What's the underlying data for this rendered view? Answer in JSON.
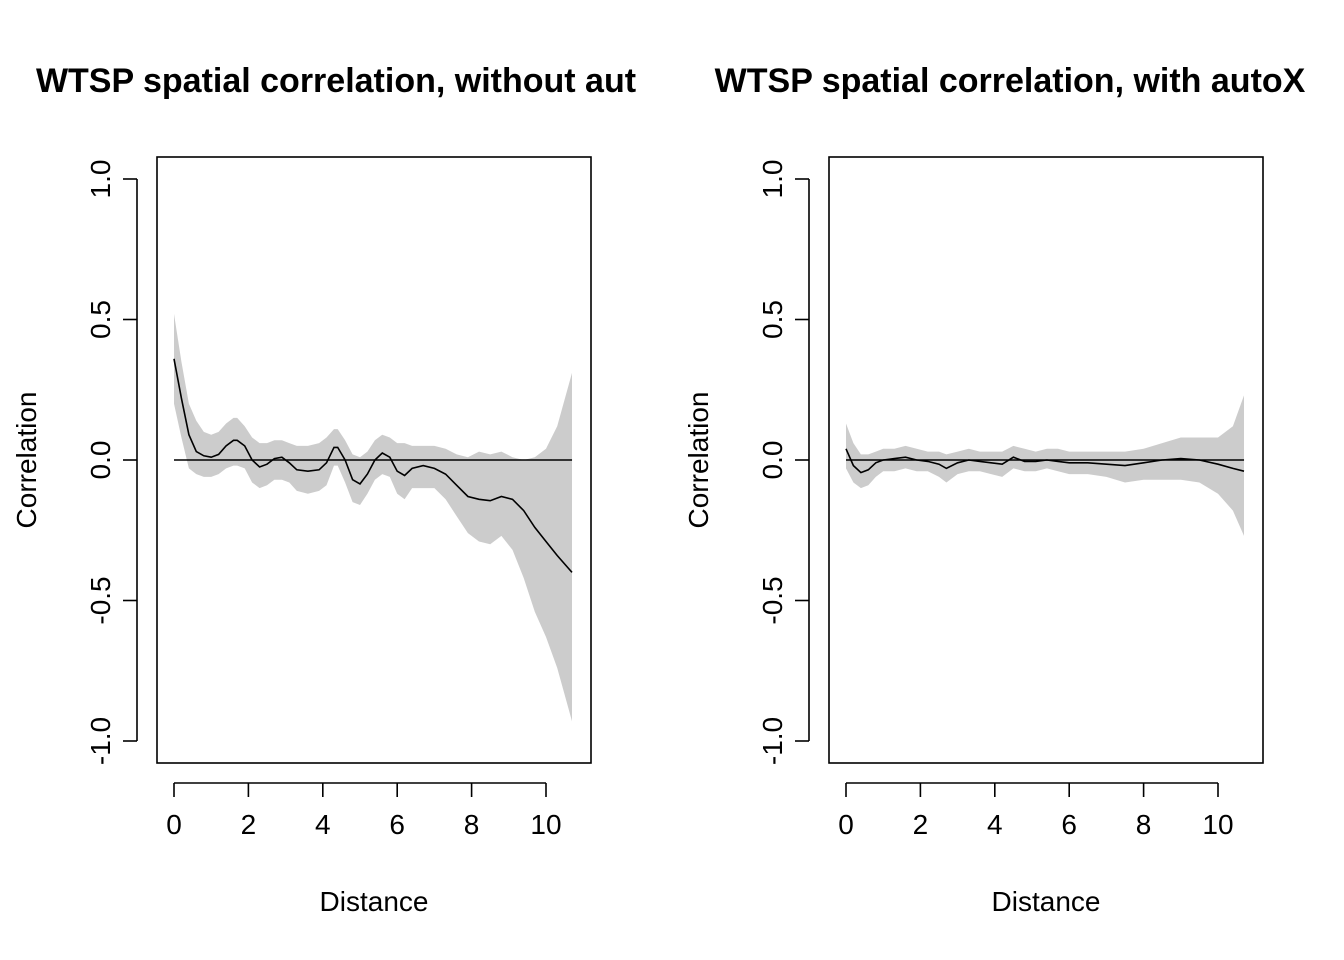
{
  "chart_data": [
    {
      "type": "area",
      "title": "WTSP spatial correlation, without aut",
      "xlabel": "Distance",
      "ylabel": "Correlation",
      "xlim": [
        0,
        10.7
      ],
      "ylim": [
        -1.0,
        1.0
      ],
      "x_ticks": [
        "0",
        "2",
        "4",
        "6",
        "8",
        "10"
      ],
      "y_ticks": [
        "-1.0",
        "-0.5",
        "0.0",
        "0.5",
        "1.0"
      ],
      "reference_line": 0,
      "band_color": "#cccccc",
      "line_color": "#000000",
      "x": [
        0,
        0.2,
        0.4,
        0.6,
        0.8,
        1.0,
        1.2,
        1.4,
        1.6,
        1.7,
        1.9,
        2.1,
        2.3,
        2.5,
        2.7,
        2.9,
        3.1,
        3.3,
        3.6,
        3.9,
        4.1,
        4.3,
        4.4,
        4.6,
        4.8,
        5.0,
        5.2,
        5.4,
        5.6,
        5.8,
        6.0,
        6.2,
        6.4,
        6.7,
        7.0,
        7.3,
        7.6,
        7.9,
        8.2,
        8.5,
        8.8,
        9.1,
        9.4,
        9.7,
        10.0,
        10.3,
        10.7
      ],
      "y": [
        0.36,
        0.22,
        0.09,
        0.03,
        0.015,
        0.01,
        0.02,
        0.05,
        0.07,
        0.07,
        0.05,
        0.0,
        -0.025,
        -0.015,
        0.005,
        0.01,
        -0.01,
        -0.035,
        -0.04,
        -0.035,
        -0.01,
        0.045,
        0.045,
        0.0,
        -0.07,
        -0.085,
        -0.05,
        0.0,
        0.025,
        0.01,
        -0.04,
        -0.055,
        -0.03,
        -0.02,
        -0.03,
        -0.05,
        -0.09,
        -0.13,
        -0.14,
        -0.145,
        -0.13,
        -0.14,
        -0.18,
        -0.24,
        -0.29,
        -0.34,
        -0.4
      ],
      "upper": [
        0.52,
        0.35,
        0.2,
        0.14,
        0.1,
        0.09,
        0.1,
        0.13,
        0.15,
        0.15,
        0.12,
        0.08,
        0.06,
        0.06,
        0.07,
        0.07,
        0.06,
        0.05,
        0.05,
        0.06,
        0.08,
        0.11,
        0.11,
        0.07,
        0.02,
        0.01,
        0.03,
        0.07,
        0.09,
        0.08,
        0.06,
        0.06,
        0.05,
        0.05,
        0.05,
        0.04,
        0.02,
        0.01,
        0.03,
        0.02,
        0.03,
        0.01,
        0.0,
        0.01,
        0.04,
        0.12,
        0.31
      ],
      "lower": [
        0.2,
        0.08,
        -0.03,
        -0.05,
        -0.06,
        -0.06,
        -0.05,
        -0.03,
        -0.02,
        -0.02,
        -0.03,
        -0.08,
        -0.1,
        -0.09,
        -0.07,
        -0.07,
        -0.08,
        -0.11,
        -0.12,
        -0.11,
        -0.09,
        -0.02,
        -0.02,
        -0.08,
        -0.15,
        -0.16,
        -0.12,
        -0.07,
        -0.05,
        -0.06,
        -0.12,
        -0.14,
        -0.1,
        -0.1,
        -0.1,
        -0.14,
        -0.2,
        -0.26,
        -0.29,
        -0.3,
        -0.27,
        -0.32,
        -0.42,
        -0.54,
        -0.63,
        -0.74,
        -0.93
      ]
    },
    {
      "type": "area",
      "title": "WTSP spatial correlation, with autoX",
      "xlabel": "Distance",
      "ylabel": "Correlation",
      "xlim": [
        0,
        10.7
      ],
      "ylim": [
        -1.0,
        1.0
      ],
      "x_ticks": [
        "0",
        "2",
        "4",
        "6",
        "8",
        "10"
      ],
      "y_ticks": [
        "-1.0",
        "-0.5",
        "0.0",
        "0.5",
        "1.0"
      ],
      "reference_line": 0,
      "band_color": "#cccccc",
      "line_color": "#000000",
      "x": [
        0,
        0.2,
        0.4,
        0.6,
        0.8,
        1.0,
        1.3,
        1.6,
        1.9,
        2.2,
        2.5,
        2.7,
        3.0,
        3.3,
        3.6,
        3.9,
        4.2,
        4.5,
        4.8,
        5.1,
        5.4,
        5.7,
        6.0,
        6.5,
        7.0,
        7.5,
        8.0,
        8.5,
        9.0,
        9.5,
        10.0,
        10.4,
        10.7
      ],
      "y": [
        0.04,
        -0.02,
        -0.045,
        -0.035,
        -0.01,
        0.0,
        0.005,
        0.01,
        0.0,
        -0.005,
        -0.015,
        -0.03,
        -0.01,
        0.0,
        -0.005,
        -0.01,
        -0.015,
        0.01,
        -0.005,
        -0.005,
        0.0,
        -0.005,
        -0.01,
        -0.01,
        -0.015,
        -0.02,
        -0.01,
        0.0,
        0.005,
        0.0,
        -0.015,
        -0.03,
        -0.04
      ],
      "upper": [
        0.13,
        0.06,
        0.02,
        0.02,
        0.03,
        0.04,
        0.04,
        0.05,
        0.04,
        0.03,
        0.03,
        0.02,
        0.03,
        0.04,
        0.03,
        0.03,
        0.03,
        0.05,
        0.04,
        0.03,
        0.04,
        0.04,
        0.03,
        0.03,
        0.03,
        0.03,
        0.04,
        0.06,
        0.08,
        0.08,
        0.08,
        0.12,
        0.23
      ],
      "lower": [
        -0.03,
        -0.08,
        -0.1,
        -0.09,
        -0.06,
        -0.04,
        -0.04,
        -0.03,
        -0.04,
        -0.04,
        -0.06,
        -0.08,
        -0.05,
        -0.04,
        -0.04,
        -0.05,
        -0.06,
        -0.03,
        -0.04,
        -0.04,
        -0.03,
        -0.04,
        -0.05,
        -0.05,
        -0.06,
        -0.08,
        -0.07,
        -0.07,
        -0.07,
        -0.08,
        -0.12,
        -0.18,
        -0.27
      ]
    }
  ]
}
